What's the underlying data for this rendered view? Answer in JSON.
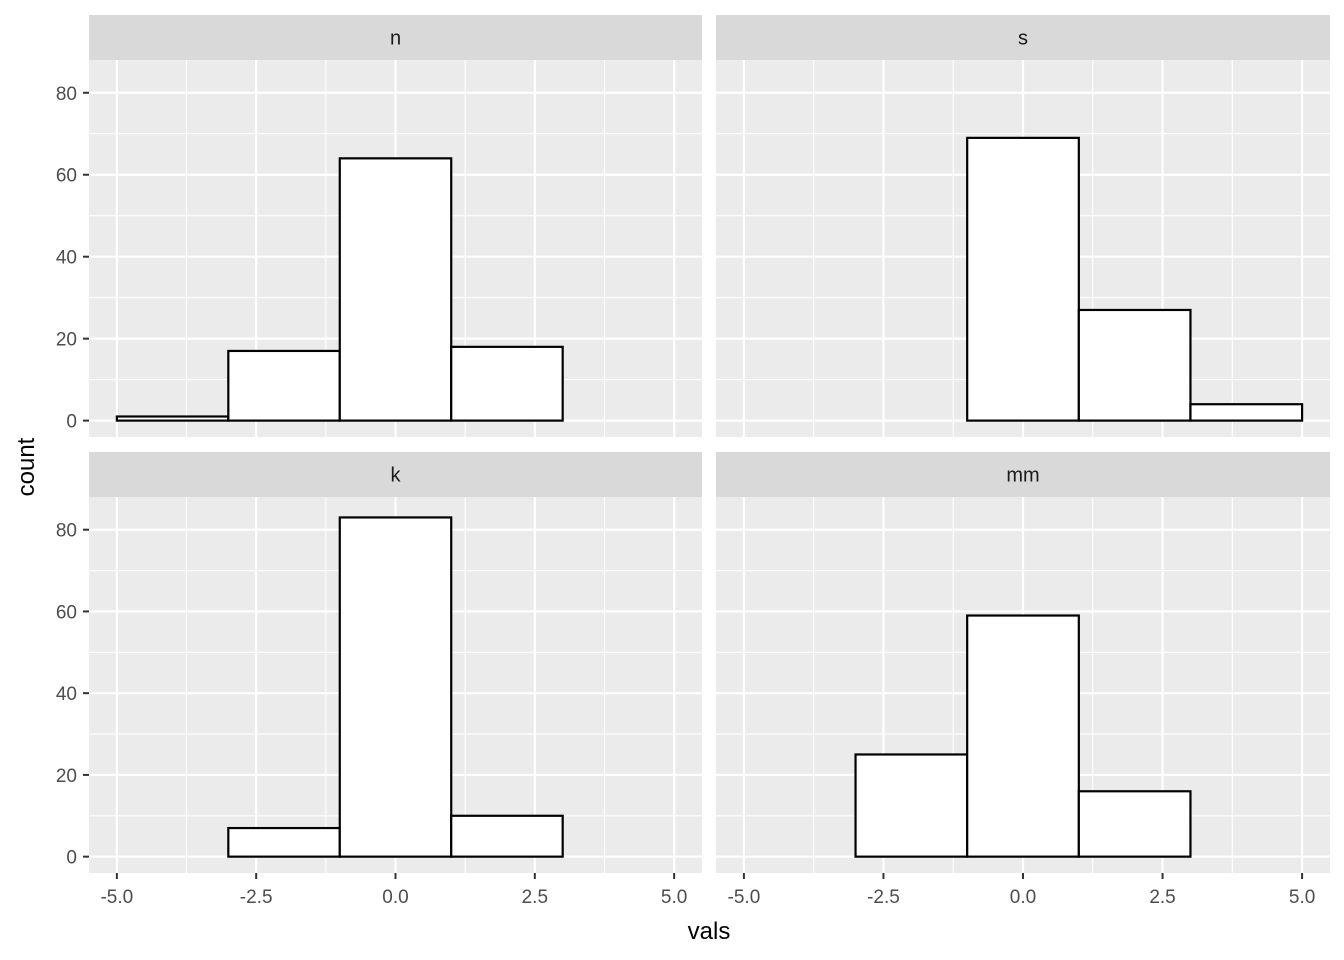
{
  "chart_data": {
    "type": "bar",
    "xlabel": "vals",
    "ylabel": "count",
    "xlim": [
      -5.5,
      5.5
    ],
    "ylim": [
      -4,
      88
    ],
    "x_ticks": [
      -5.0,
      -2.5,
      0.0,
      2.5,
      5.0
    ],
    "x_tick_labels": [
      "-5.0",
      "-2.5",
      "0.0",
      "2.5",
      "5.0"
    ],
    "y_ticks": [
      0,
      20,
      40,
      60,
      80
    ],
    "y_tick_labels": [
      "0",
      "20",
      "40",
      "60",
      "80"
    ],
    "bin_edges": [
      -5,
      -3,
      -1,
      1,
      3,
      5
    ],
    "grid": true,
    "panels": [
      {
        "label": "n",
        "counts": [
          1,
          17,
          64,
          18,
          0
        ]
      },
      {
        "label": "s",
        "counts": [
          0,
          0,
          69,
          27,
          4
        ]
      },
      {
        "label": "k",
        "counts": [
          0,
          7,
          83,
          10,
          0
        ]
      },
      {
        "label": "mm",
        "counts": [
          0,
          25,
          59,
          16,
          0
        ]
      }
    ]
  },
  "colors": {
    "panel_background": "#ebebeb",
    "strip_background": "#d9d9d9",
    "grid": "#ffffff",
    "bar_fill": "#ffffff",
    "bar_outline": "#000000"
  }
}
